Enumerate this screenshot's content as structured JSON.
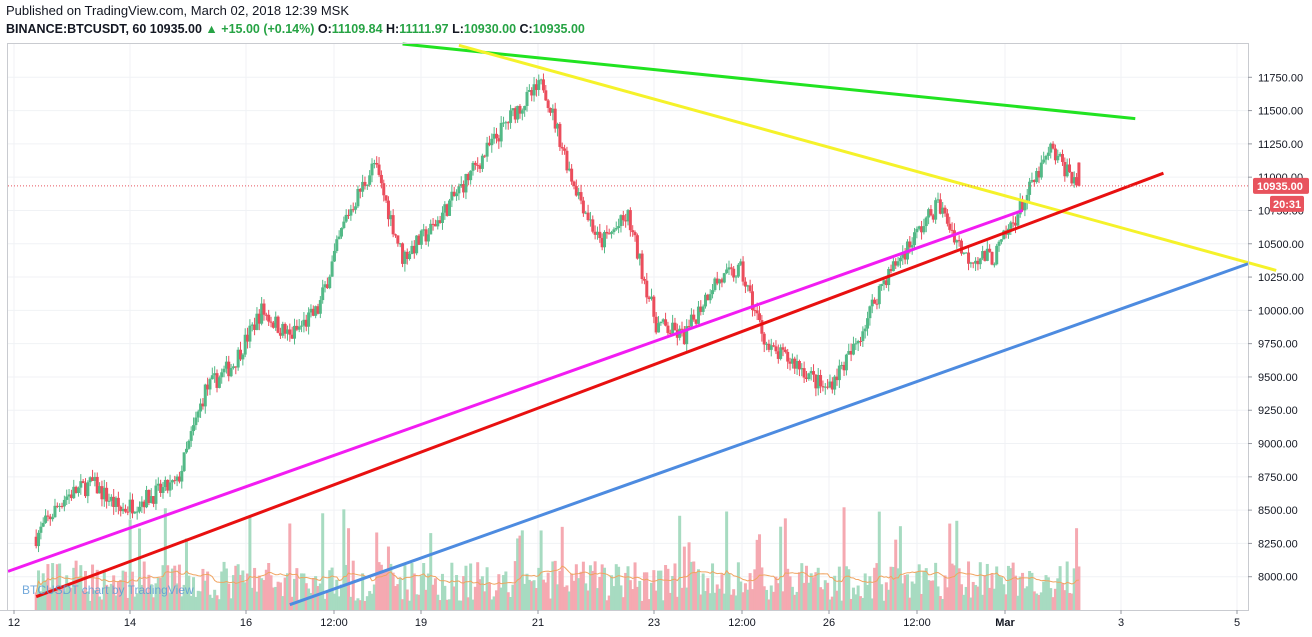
{
  "header": {
    "published": "Published on TradingView.com, March 02, 2018 12:39 MSK",
    "symbol": "BINANCE:BTCUSDT, 60",
    "last": "10935.00",
    "change": "+15.00 (+0.14%)",
    "o_label": "O:",
    "o_value": "11109.84",
    "h_label": "H:",
    "h_value": "11111.97",
    "l_label": "L:",
    "l_value": "10930.00",
    "c_label": "C:",
    "c_value": "10935.00"
  },
  "price_tag": {
    "value": "10935.00",
    "countdown": "20:31"
  },
  "watermark": "BTCUSDT chart by TradingView",
  "colors": {
    "up": "#53b987",
    "down": "#eb4d5c",
    "vol_up": "#a7dbc1",
    "vol_down": "#f5a9b1",
    "green_line": "#21e321",
    "yellow_line": "#f5f22a",
    "magenta_line": "#f21cf2",
    "red_line": "#e81010",
    "blue_line": "#4d8be0",
    "price_tag": "#e8535d",
    "vol_ma": "#f0a460"
  },
  "chart_data": {
    "type": "candlestick",
    "y_axis": {
      "min": 7750,
      "max": 12000,
      "ticks": [
        8000,
        8250,
        8500,
        8750,
        9000,
        9250,
        9500,
        9750,
        10000,
        10250,
        10500,
        10750,
        11000,
        11250,
        11500,
        11750
      ]
    },
    "x_ticks": [
      "12",
      "14",
      "16",
      "12:00",
      "19",
      "21",
      "23",
      "12:00",
      "26",
      "12:00",
      "Mar",
      "3",
      "5"
    ],
    "last_price": 10935,
    "price_path": [
      [
        "Feb 12 00:00",
        8300
      ],
      [
        "Feb 12 12:00",
        8600
      ],
      [
        "Feb 13 00:00",
        8700
      ],
      [
        "Feb 13 12:00",
        8500
      ],
      [
        "Feb 14 00:00",
        8600
      ],
      [
        "Feb 14 12:00",
        8700
      ],
      [
        "Feb 15 00:00",
        9400
      ],
      [
        "Feb 15 12:00",
        9600
      ],
      [
        "Feb 16 00:00",
        10000
      ],
      [
        "Feb 16 12:00",
        9800
      ],
      [
        "Feb 17 00:00",
        10000
      ],
      [
        "Feb 17 12:00",
        10700
      ],
      [
        "Feb 18 00:00",
        11100
      ],
      [
        "Feb 18 12:00",
        10400
      ],
      [
        "Feb 19 00:00",
        10600
      ],
      [
        "Feb 19 12:00",
        10900
      ],
      [
        "Feb 20 00:00",
        11200
      ],
      [
        "Feb 20 12:00",
        11500
      ],
      [
        "Feb 21 00:00",
        11700
      ],
      [
        "Feb 21 12:00",
        11000
      ],
      [
        "Feb 22 00:00",
        10500
      ],
      [
        "Feb 22 12:00",
        10700
      ],
      [
        "Feb 23 00:00",
        9900
      ],
      [
        "Feb 23 12:00",
        9800
      ],
      [
        "Feb 24 00:00",
        10200
      ],
      [
        "Feb 24 12:00",
        10300
      ],
      [
        "Feb 25 00:00",
        9700
      ],
      [
        "Feb 25 12:00",
        9600
      ],
      [
        "Feb 26 00:00",
        9400
      ],
      [
        "Feb 26 12:00",
        9700
      ],
      [
        "Feb 27 00:00",
        10200
      ],
      [
        "Feb 27 12:00",
        10500
      ],
      [
        "Feb 28 00:00",
        10800
      ],
      [
        "Feb 28 12:00",
        10400
      ],
      [
        "Mar 01 00:00",
        10400
      ],
      [
        "Mar 01 12:00",
        10800
      ],
      [
        "Mar 02 00:00",
        11200
      ],
      [
        "Mar 02 12:39",
        10935
      ]
    ],
    "trendlines": [
      {
        "color": "green",
        "from": [
          "Feb 18 12:00",
          12000
        ],
        "to": [
          "Mar 03 12:00",
          11440
        ]
      },
      {
        "color": "yellow",
        "from": [
          "Feb 19 12:00",
          11990
        ],
        "to": [
          "Mar 06 00:00",
          10300
        ]
      },
      {
        "color": "magenta",
        "from": [
          "Feb 11 12:00",
          8040
        ],
        "to": [
          "Mar 01 12:00",
          10750
        ]
      },
      {
        "color": "red",
        "from": [
          "Feb 12 00:00",
          7850
        ],
        "to": [
          "Mar 04 00:00",
          11030
        ]
      },
      {
        "color": "blue",
        "from": [
          "Feb 16 12:00",
          7790
        ],
        "to": [
          "Mar 05 12:00",
          10350
        ]
      }
    ]
  }
}
